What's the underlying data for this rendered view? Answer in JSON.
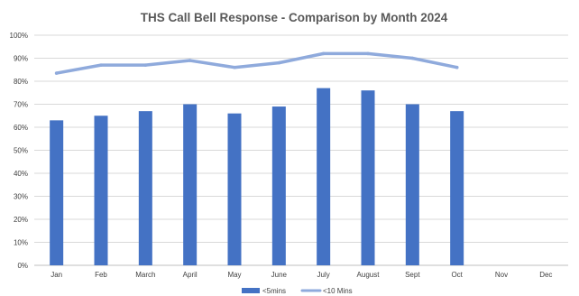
{
  "chart_data": {
    "type": "bar",
    "title": "THS Call Bell Response - Comparison by Month 2024",
    "categories": [
      "Jan",
      "Feb",
      "March",
      "April",
      "May",
      "June",
      "July",
      "August",
      "Sept",
      "Oct",
      "Nov",
      "Dec"
    ],
    "series": [
      {
        "name": "<5mins",
        "type": "bar",
        "color": "#4472C4",
        "values": [
          63,
          65,
          67,
          70,
          66,
          69,
          77,
          76,
          70,
          67,
          null,
          null
        ]
      },
      {
        "name": "<10 Mins",
        "type": "line",
        "color": "#8FAADC",
        "values": [
          83.5,
          87,
          87,
          89,
          86,
          88,
          92,
          92,
          90,
          86,
          null,
          null
        ]
      }
    ],
    "y_ticks": [
      "0%",
      "10%",
      "20%",
      "30%",
      "40%",
      "50%",
      "60%",
      "70%",
      "80%",
      "90%",
      "100%"
    ],
    "ylim": [
      0,
      100
    ],
    "grid": true,
    "legend_position": "bottom",
    "xlabel": "",
    "ylabel": ""
  }
}
